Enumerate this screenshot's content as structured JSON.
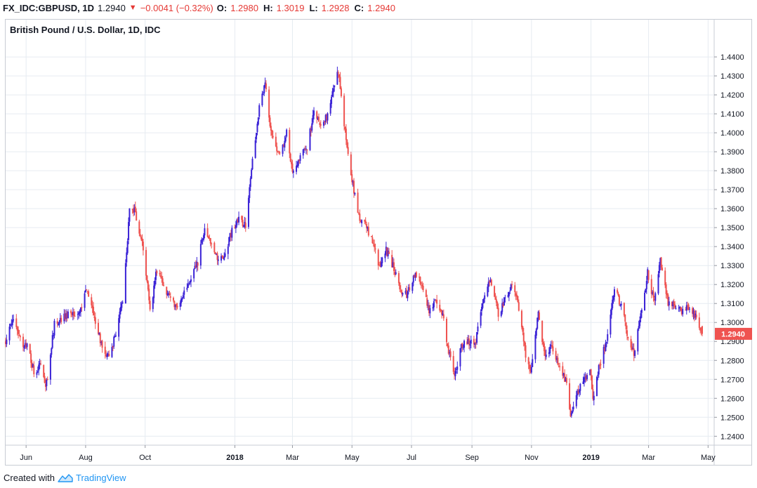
{
  "header": {
    "symbol": "FX_IDC:GBPUSD, 1D",
    "last": "1.2940",
    "change": "−0.0041 (−0.32%)",
    "open_label": "O:",
    "open": "1.2980",
    "high_label": "H:",
    "high": "1.3019",
    "low_label": "L:",
    "low": "1.2928",
    "close_label": "C:",
    "close": "1.2940",
    "direction_icon": "triangle-down-icon"
  },
  "footer": {
    "created_with": "Created with",
    "brand": "TradingView",
    "logo_icon": "tradingview-logo-icon"
  },
  "colors": {
    "up": "#3a22d6",
    "down": "#ef5350",
    "grid": "#e6ebf1",
    "axis_text": "#131722",
    "price_tag": "#ef5350"
  },
  "chart_data": {
    "type": "candlestick",
    "title": "British Pound / U.S. Dollar, 1D, IDC",
    "ylim": [
      1.2353,
      1.4515
    ],
    "y_ticks": [
      "1.4400",
      "1.4300",
      "1.4200",
      "1.4100",
      "1.4000",
      "1.3900",
      "1.3800",
      "1.3700",
      "1.3600",
      "1.3500",
      "1.3400",
      "1.3300",
      "1.3200",
      "1.3100",
      "1.3000",
      "1.2900",
      "1.2800",
      "1.2700",
      "1.2600",
      "1.2500",
      "1.2400"
    ],
    "x_ticks": [
      {
        "label": "Jun",
        "date": "2017-06-01"
      },
      {
        "label": "Aug",
        "date": "2017-08-01"
      },
      {
        "label": "Oct",
        "date": "2017-10-01"
      },
      {
        "label": "2018",
        "date": "2018-01-01"
      },
      {
        "label": "Mar",
        "date": "2018-03-01"
      },
      {
        "label": "May",
        "date": "2018-05-01"
      },
      {
        "label": "Jul",
        "date": "2018-07-01"
      },
      {
        "label": "Sep",
        "date": "2018-09-01"
      },
      {
        "label": "Nov",
        "date": "2018-11-01"
      },
      {
        "label": "2019",
        "date": "2019-01-01"
      },
      {
        "label": "Mar",
        "date": "2019-03-01"
      },
      {
        "label": "May",
        "date": "2019-05-01"
      }
    ],
    "start_date": "2017-05-11",
    "end_date": "2019-04-25",
    "last_price_label": "1.2940",
    "last_price": 1.294,
    "grid": true,
    "close_path": [
      [
        "2017-05-11",
        1.29
      ],
      [
        "2017-05-18",
        1.302
      ],
      [
        "2017-05-26",
        1.29
      ],
      [
        "2017-06-02",
        1.288
      ],
      [
        "2017-06-09",
        1.274
      ],
      [
        "2017-06-16",
        1.278
      ],
      [
        "2017-06-21",
        1.264
      ],
      [
        "2017-06-30",
        1.299
      ],
      [
        "2017-07-14",
        1.305
      ],
      [
        "2017-07-26",
        1.306
      ],
      [
        "2017-08-03",
        1.318
      ],
      [
        "2017-08-10",
        1.301
      ],
      [
        "2017-08-17",
        1.289
      ],
      [
        "2017-08-24",
        1.282
      ],
      [
        "2017-09-01",
        1.293
      ],
      [
        "2017-09-08",
        1.312
      ],
      [
        "2017-09-15",
        1.358
      ],
      [
        "2017-09-20",
        1.36
      ],
      [
        "2017-09-29",
        1.34
      ],
      [
        "2017-10-06",
        1.306
      ],
      [
        "2017-10-13",
        1.328
      ],
      [
        "2017-10-20",
        1.319
      ],
      [
        "2017-10-27",
        1.312
      ],
      [
        "2017-11-03",
        1.307
      ],
      [
        "2017-11-10",
        1.317
      ],
      [
        "2017-11-17",
        1.323
      ],
      [
        "2017-11-24",
        1.332
      ],
      [
        "2017-12-01",
        1.35
      ],
      [
        "2017-12-08",
        1.342
      ],
      [
        "2017-12-15",
        1.334
      ],
      [
        "2017-12-22",
        1.336
      ],
      [
        "2017-12-29",
        1.349
      ],
      [
        "2018-01-05",
        1.355
      ],
      [
        "2018-01-12",
        1.351
      ],
      [
        "2018-01-19",
        1.385
      ],
      [
        "2018-01-26",
        1.414
      ],
      [
        "2018-02-01",
        1.426
      ],
      [
        "2018-02-07",
        1.4
      ],
      [
        "2018-02-16",
        1.388
      ],
      [
        "2018-02-23",
        1.4
      ],
      [
        "2018-03-01",
        1.38
      ],
      [
        "2018-03-09",
        1.388
      ],
      [
        "2018-03-16",
        1.393
      ],
      [
        "2018-03-23",
        1.41
      ],
      [
        "2018-03-30",
        1.403
      ],
      [
        "2018-04-06",
        1.41
      ],
      [
        "2018-04-12",
        1.425
      ],
      [
        "2018-04-17",
        1.432
      ],
      [
        "2018-04-24",
        1.4
      ],
      [
        "2018-05-01",
        1.375
      ],
      [
        "2018-05-08",
        1.355
      ],
      [
        "2018-05-15",
        1.351
      ],
      [
        "2018-05-22",
        1.343
      ],
      [
        "2018-05-29",
        1.328
      ],
      [
        "2018-06-05",
        1.338
      ],
      [
        "2018-06-12",
        1.33
      ],
      [
        "2018-06-19",
        1.318
      ],
      [
        "2018-06-26",
        1.315
      ],
      [
        "2018-07-05",
        1.325
      ],
      [
        "2018-07-12",
        1.321
      ],
      [
        "2018-07-19",
        1.306
      ],
      [
        "2018-07-26",
        1.313
      ],
      [
        "2018-08-02",
        1.303
      ],
      [
        "2018-08-09",
        1.282
      ],
      [
        "2018-08-14",
        1.271
      ],
      [
        "2018-08-21",
        1.288
      ],
      [
        "2018-08-28",
        1.29
      ],
      [
        "2018-09-04",
        1.288
      ],
      [
        "2018-09-11",
        1.307
      ],
      [
        "2018-09-20",
        1.324
      ],
      [
        "2018-09-28",
        1.305
      ],
      [
        "2018-10-05",
        1.312
      ],
      [
        "2018-10-12",
        1.321
      ],
      [
        "2018-10-19",
        1.308
      ],
      [
        "2018-10-26",
        1.283
      ],
      [
        "2018-10-31",
        1.273
      ],
      [
        "2018-11-08",
        1.305
      ],
      [
        "2018-11-15",
        1.282
      ],
      [
        "2018-11-22",
        1.288
      ],
      [
        "2018-11-29",
        1.276
      ],
      [
        "2018-12-06",
        1.27
      ],
      [
        "2018-12-11",
        1.251
      ],
      [
        "2018-12-20",
        1.265
      ],
      [
        "2018-12-31",
        1.275
      ],
      [
        "2019-01-03",
        1.261
      ],
      [
        "2019-01-10",
        1.278
      ],
      [
        "2019-01-17",
        1.29
      ],
      [
        "2019-01-25",
        1.318
      ],
      [
        "2019-01-31",
        1.31
      ],
      [
        "2019-02-07",
        1.295
      ],
      [
        "2019-02-14",
        1.283
      ],
      [
        "2019-02-21",
        1.305
      ],
      [
        "2019-02-28",
        1.326
      ],
      [
        "2019-03-07",
        1.31
      ],
      [
        "2019-03-13",
        1.332
      ],
      [
        "2019-03-21",
        1.311
      ],
      [
        "2019-03-28",
        1.31
      ],
      [
        "2019-04-04",
        1.305
      ],
      [
        "2019-04-11",
        1.308
      ],
      [
        "2019-04-18",
        1.303
      ],
      [
        "2019-04-25",
        1.294
      ]
    ]
  }
}
